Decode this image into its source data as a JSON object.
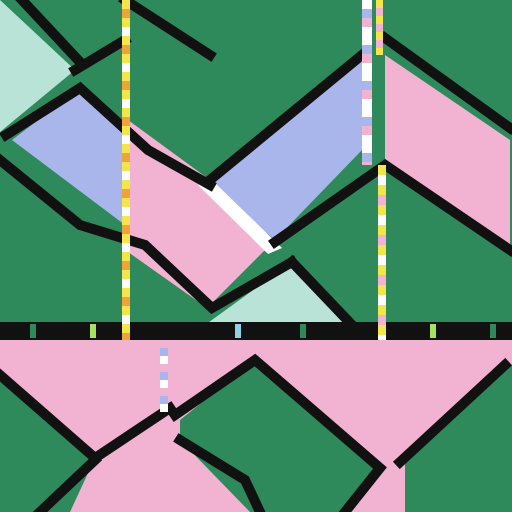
{
  "palette": {
    "green": "#2e8a5b",
    "pink": "#f2b3d2",
    "lavender": "#a9b6ec",
    "mint": "#b9e3d6",
    "line": "#111111",
    "yellow": "#f3e64c",
    "orange": "#f1a23a",
    "white": "#ffffff",
    "sky": "#8fd0ea",
    "lime": "#a6e35c"
  },
  "motif": "geometric-diagonal-bands",
  "stripes": [
    "dashed-yellow-orange",
    "dashed-yellow-white",
    "pink-lavender-dots"
  ]
}
